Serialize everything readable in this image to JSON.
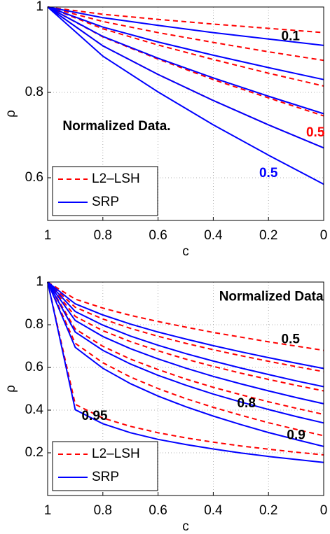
{
  "chart_data": [
    {
      "type": "line",
      "xlabel": "c",
      "ylabel": "ρ",
      "xlim": [
        1,
        0
      ],
      "ylim": [
        0.5,
        1
      ],
      "xticks": [
        1,
        0.8,
        0.6,
        0.4,
        0.2,
        0
      ],
      "yticks": [
        0.6,
        0.8,
        1
      ],
      "grid": true,
      "legend": "lower left",
      "x": [
        1,
        0.8,
        0.6,
        0.4,
        0.2,
        0
      ],
      "series": [
        {
          "name": "L2–LSH",
          "color": "#ff0000",
          "style": "dashed",
          "lines": [
            [
              1,
              0.983,
              0.971,
              0.96,
              0.95,
              0.94
            ],
            [
              1,
              0.966,
              0.94,
              0.917,
              0.895,
              0.875
            ],
            [
              1,
              0.949,
              0.911,
              0.877,
              0.845,
              0.815
            ],
            [
              1,
              0.93,
              0.878,
              0.83,
              0.787,
              0.745
            ],
            [
              1,
              0.909,
              0.842,
              0.781,
              0.724,
              0.67
            ]
          ]
        },
        {
          "name": "SRP",
          "color": "#0000ff",
          "style": "solid",
          "lines": [
            [
              1,
              0.975,
              0.957,
              0.94,
              0.925,
              0.91
            ],
            [
              1,
              0.953,
              0.918,
              0.887,
              0.858,
              0.83
            ],
            [
              1,
              0.931,
              0.88,
              0.834,
              0.791,
              0.75
            ],
            [
              1,
              0.909,
              0.842,
              0.781,
              0.724,
              0.67
            ],
            [
              1,
              0.885,
              0.801,
              0.724,
              0.653,
              0.585
            ]
          ]
        }
      ],
      "annotations": [
        {
          "text": "0.1",
          "x": 0.12,
          "y": 0.93,
          "color": "#000000"
        },
        {
          "text": "Normalized Data.",
          "x": 0.75,
          "y": 0.72,
          "color": "#000000"
        },
        {
          "text": "0.5",
          "x": 0.03,
          "y": 0.705,
          "color": "#ff0000"
        },
        {
          "text": "0.5",
          "x": 0.2,
          "y": 0.61,
          "color": "#0000ff"
        }
      ]
    },
    {
      "type": "line",
      "xlabel": "c",
      "ylabel": "ρ",
      "xlim": [
        1,
        0
      ],
      "ylim": [
        0,
        1
      ],
      "xticks": [
        1,
        0.8,
        0.6,
        0.4,
        0.2,
        0
      ],
      "yticks": [
        0.2,
        0.4,
        0.6,
        0.8,
        1
      ],
      "grid": true,
      "legend": "lower left",
      "x": [
        1,
        0.9,
        0.8,
        0.7,
        0.6,
        0.5,
        0.4,
        0.3,
        0.2,
        0.1,
        0
      ],
      "series": [
        {
          "name": "L2–LSH",
          "color": "#ff0000",
          "style": "dashed",
          "lines": [
            [
              1,
              0.92,
              0.878,
              0.844,
              0.815,
              0.789,
              0.764,
              0.742,
              0.72,
              0.7,
              0.68
            ],
            [
              1,
              0.882,
              0.827,
              0.783,
              0.746,
              0.713,
              0.683,
              0.655,
              0.629,
              0.604,
              0.58
            ],
            [
              1,
              0.839,
              0.772,
              0.721,
              0.678,
              0.639,
              0.605,
              0.573,
              0.544,
              0.516,
              0.49
            ],
            [
              1,
              0.78,
              0.699,
              0.639,
              0.59,
              0.546,
              0.507,
              0.472,
              0.439,
              0.409,
              0.38
            ],
            [
              1,
              0.713,
              0.622,
              0.555,
              0.501,
              0.454,
              0.413,
              0.376,
              0.341,
              0.31,
              0.28
            ],
            [
              1,
              0.427,
              0.363,
              0.324,
              0.294,
              0.27,
              0.25,
              0.232,
              0.217,
              0.203,
              0.19
            ]
          ]
        },
        {
          "name": "SRP",
          "color": "#0000ff",
          "style": "solid",
          "lines": [
            [
              1,
              0.898,
              0.846,
              0.803,
              0.766,
              0.733,
              0.702,
              0.673,
              0.646,
              0.62,
              0.595
            ],
            [
              1,
              0.862,
              0.798,
              0.747,
              0.704,
              0.665,
              0.63,
              0.597,
              0.567,
              0.537,
              0.51
            ],
            [
              1,
              0.82,
              0.745,
              0.688,
              0.64,
              0.597,
              0.558,
              0.523,
              0.49,
              0.459,
              0.43
            ],
            [
              1,
              0.766,
              0.68,
              0.616,
              0.563,
              0.517,
              0.475,
              0.438,
              0.403,
              0.37,
              0.34
            ],
            [
              1,
              0.694,
              0.596,
              0.524,
              0.466,
              0.416,
              0.372,
              0.332,
              0.295,
              0.262,
              0.23
            ],
            [
              1,
              0.402,
              0.336,
              0.294,
              0.263,
              0.239,
              0.218,
              0.199,
              0.183,
              0.169,
              0.155
            ]
          ]
        }
      ],
      "annotations": [
        {
          "text": "Normalized Data",
          "x": 0.19,
          "y": 0.93,
          "color": "#000000"
        },
        {
          "text": "0.5",
          "x": 0.12,
          "y": 0.73,
          "color": "#000000"
        },
        {
          "text": "0.8",
          "x": 0.28,
          "y": 0.43,
          "color": "#000000"
        },
        {
          "text": "0.9",
          "x": 0.1,
          "y": 0.28,
          "color": "#000000"
        },
        {
          "text": "0.95",
          "x": 0.83,
          "y": 0.37,
          "color": "#000000"
        }
      ]
    }
  ]
}
